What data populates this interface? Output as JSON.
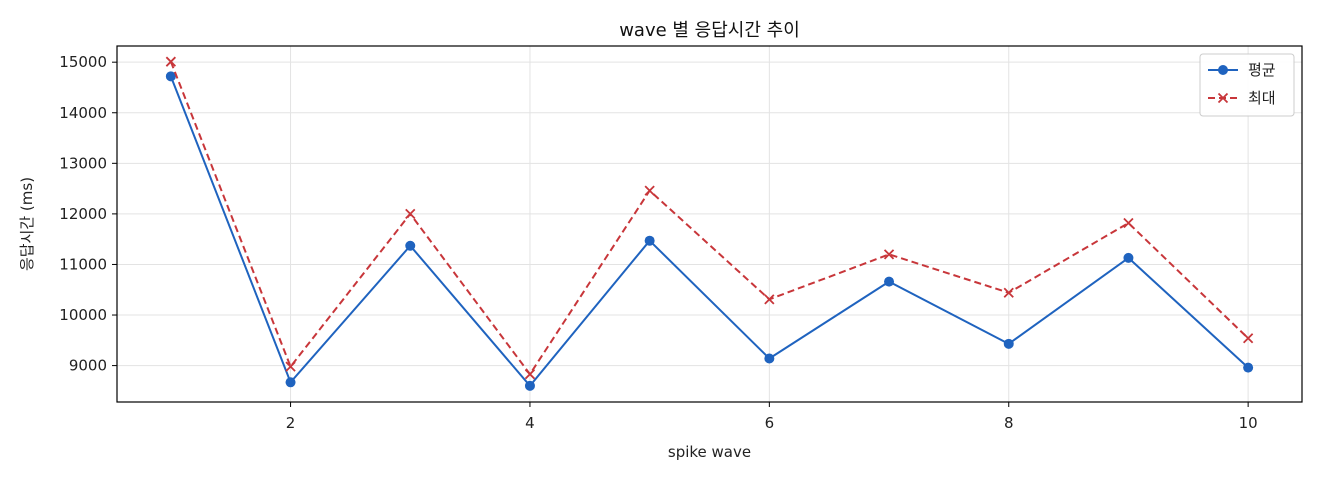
{
  "chart_data": {
    "type": "line",
    "title": "wave 별 응답시간 추이",
    "xlabel": "spike wave",
    "ylabel": "응답시간 (ms)",
    "x": [
      1,
      2,
      3,
      4,
      5,
      6,
      7,
      8,
      9,
      10
    ],
    "xlim": [
      0.55,
      10.45
    ],
    "ylim": [
      8280,
      15320
    ],
    "xticks": [
      2,
      4,
      6,
      8,
      10
    ],
    "yticks": [
      9000,
      10000,
      11000,
      12000,
      13000,
      14000,
      15000
    ],
    "grid": true,
    "legend_position": "top-right",
    "series": [
      {
        "name": "평균",
        "color": "#1f63bf",
        "line_style": "solid",
        "marker": "circle",
        "values": [
          14720,
          8670,
          11370,
          8600,
          11470,
          9140,
          10660,
          9430,
          11130,
          8960
        ]
      },
      {
        "name": "최대",
        "color": "#c8363a",
        "line_style": "dashed",
        "marker": "x",
        "values": [
          15010,
          8980,
          12000,
          8830,
          12460,
          10310,
          11200,
          10440,
          11820,
          9540
        ]
      }
    ]
  }
}
